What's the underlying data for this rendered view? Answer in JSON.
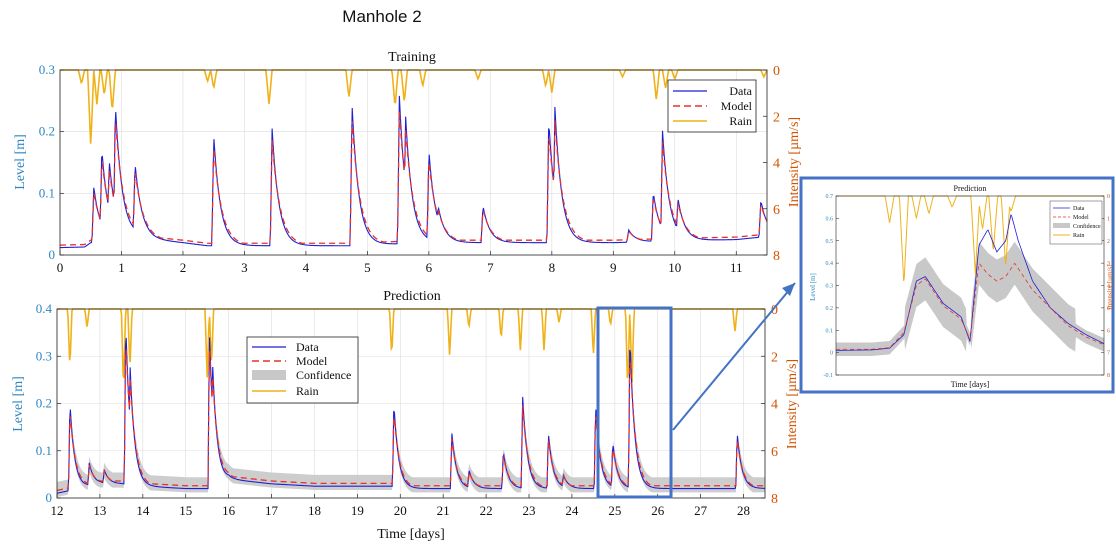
{
  "figure": {
    "title": "Manhole 2",
    "colors": {
      "data": "#1f1fd6",
      "model": "#e8302a",
      "rain": "#f0b21a",
      "confidence": "#c8c8c8",
      "left_axis": "#2e86c1",
      "right_axis": "#d35400",
      "highlight": "#4472c4"
    }
  },
  "chart_data": [
    {
      "id": "training",
      "type": "line",
      "title": "Training",
      "xlabel": "",
      "ylabel": "Level [m]",
      "y2label": "Intensity [µm/s]",
      "xlim": [
        0,
        11.5
      ],
      "ylim": [
        0,
        0.3
      ],
      "y2lim_reversed": [
        0,
        8
      ],
      "xticks": [
        0,
        1,
        2,
        3,
        4,
        5,
        6,
        7,
        8,
        9,
        10,
        11
      ],
      "yticks": [
        0,
        0.1,
        0.2,
        0.3
      ],
      "y2ticks": [
        0,
        2,
        4,
        6,
        8
      ],
      "grid": true,
      "legend": {
        "position": "top-right",
        "entries": [
          "Data",
          "Model",
          "Rain"
        ]
      },
      "baseline": [
        [
          0,
          0.012
        ],
        [
          0.4,
          0.013
        ],
        [
          0.5,
          0.02
        ],
        [
          1.2,
          0.03
        ],
        [
          1.5,
          0.025
        ],
        [
          2.0,
          0.02
        ],
        [
          2.4,
          0.015
        ],
        [
          4.7,
          0.015
        ],
        [
          5.5,
          0.018
        ],
        [
          6.0,
          0.02
        ],
        [
          7.0,
          0.02
        ],
        [
          8.0,
          0.02
        ],
        [
          9.0,
          0.02
        ],
        [
          10.0,
          0.023
        ],
        [
          11.0,
          0.025
        ],
        [
          11.5,
          0.03
        ]
      ],
      "baseline_model_offset": 0.004,
      "peaks": [
        [
          0.55,
          0.11
        ],
        [
          0.68,
          0.17
        ],
        [
          0.8,
          0.15
        ],
        [
          0.9,
          0.24
        ],
        [
          1.22,
          0.14
        ],
        [
          2.5,
          0.2
        ],
        [
          3.45,
          0.21
        ],
        [
          4.75,
          0.25
        ],
        [
          5.52,
          0.26
        ],
        [
          5.62,
          0.23
        ],
        [
          6.0,
          0.17
        ],
        [
          6.15,
          0.08
        ],
        [
          6.88,
          0.08
        ],
        [
          7.95,
          0.22
        ],
        [
          8.05,
          0.24
        ],
        [
          9.25,
          0.04
        ],
        [
          9.65,
          0.1
        ],
        [
          9.8,
          0.2
        ],
        [
          10.05,
          0.09
        ],
        [
          11.4,
          0.08
        ]
      ],
      "rain": [
        [
          0.35,
          0.6
        ],
        [
          0.5,
          3.3
        ],
        [
          0.6,
          1.5
        ],
        [
          0.72,
          1.1
        ],
        [
          0.85,
          1.8
        ],
        [
          2.4,
          0.5
        ],
        [
          2.5,
          0.8
        ],
        [
          3.4,
          1.5
        ],
        [
          4.7,
          1.2
        ],
        [
          5.45,
          1.6
        ],
        [
          5.6,
          1.4
        ],
        [
          5.9,
          0.7
        ],
        [
          6.8,
          0.4
        ],
        [
          7.9,
          0.7
        ],
        [
          8.0,
          1.0
        ],
        [
          9.15,
          0.3
        ],
        [
          9.7,
          1.3
        ],
        [
          9.85,
          0.8
        ],
        [
          10.0,
          0.4
        ],
        [
          11.45,
          0.3
        ]
      ]
    },
    {
      "id": "prediction",
      "type": "line",
      "title": "Prediction",
      "xlabel": "Time [days]",
      "ylabel": "Level [m]",
      "y2label": "Intensity [µm/s]",
      "xlim": [
        12,
        28.5
      ],
      "ylim": [
        0,
        0.4
      ],
      "y2lim_reversed": [
        0,
        8
      ],
      "xticks": [
        12,
        13,
        14,
        15,
        16,
        17,
        18,
        19,
        20,
        21,
        22,
        23,
        24,
        25,
        26,
        27,
        28
      ],
      "yticks": [
        0,
        0.1,
        0.2,
        0.3,
        0.4
      ],
      "y2ticks": [
        0,
        2,
        4,
        6,
        8
      ],
      "grid": true,
      "legend": {
        "position": "upper-center",
        "entries": [
          "Data",
          "Model",
          "Confidence",
          "Rain"
        ]
      },
      "baseline": [
        [
          12,
          0.01
        ],
        [
          12.5,
          0.02
        ],
        [
          13.0,
          0.03
        ],
        [
          13.5,
          0.03
        ],
        [
          14.0,
          0.025
        ],
        [
          15.0,
          0.02
        ],
        [
          15.6,
          0.02
        ],
        [
          16.0,
          0.04
        ],
        [
          17.0,
          0.03
        ],
        [
          18.0,
          0.025
        ],
        [
          19.0,
          0.025
        ],
        [
          19.8,
          0.025
        ],
        [
          20.0,
          0.02
        ],
        [
          21.0,
          0.02
        ],
        [
          22.0,
          0.02
        ],
        [
          23.0,
          0.02
        ],
        [
          24.0,
          0.02
        ],
        [
          25.0,
          0.02
        ],
        [
          26.0,
          0.02
        ],
        [
          27.0,
          0.02
        ],
        [
          28.5,
          0.02
        ]
      ],
      "baseline_model_offset": 0.006,
      "peaks": [
        [
          12.3,
          0.21
        ],
        [
          12.75,
          0.07
        ],
        [
          13.1,
          0.05
        ],
        [
          13.6,
          0.37
        ],
        [
          13.7,
          0.28
        ],
        [
          15.55,
          0.36
        ],
        [
          15.62,
          0.3
        ],
        [
          19.85,
          0.2
        ],
        [
          21.2,
          0.14
        ],
        [
          21.6,
          0.06
        ],
        [
          22.4,
          0.1
        ],
        [
          22.85,
          0.22
        ],
        [
          23.45,
          0.14
        ],
        [
          23.8,
          0.05
        ],
        [
          24.55,
          0.2
        ],
        [
          24.95,
          0.12
        ],
        [
          25.35,
          0.35
        ],
        [
          27.85,
          0.14
        ]
      ],
      "rain": [
        [
          12.3,
          2.5
        ],
        [
          12.7,
          0.8
        ],
        [
          13.55,
          3.5
        ],
        [
          13.7,
          2.5
        ],
        [
          15.5,
          3.0
        ],
        [
          15.6,
          2.5
        ],
        [
          19.8,
          2.0
        ],
        [
          21.15,
          2.0
        ],
        [
          21.6,
          0.8
        ],
        [
          22.35,
          1.3
        ],
        [
          22.8,
          1.8
        ],
        [
          23.35,
          1.8
        ],
        [
          23.7,
          0.6
        ],
        [
          24.5,
          2.0
        ],
        [
          24.9,
          0.7
        ],
        [
          25.3,
          3.5
        ],
        [
          25.4,
          3.2
        ],
        [
          27.8,
          1.0
        ]
      ]
    },
    {
      "id": "inset",
      "type": "line",
      "title": "Prediction",
      "xlabel": "Time [days]",
      "ylabel": "Level [m]",
      "y2label": "Intensity [µm/s]",
      "xlim": [
        24.6,
        26.1
      ],
      "ylim": [
        -0.1,
        0.7
      ],
      "y2lim_reversed": [
        0,
        8
      ],
      "yticks": [
        -0.1,
        0,
        0.1,
        0.2,
        0.3,
        0.4,
        0.5,
        0.6,
        0.7
      ],
      "y2ticks": [
        0,
        1,
        2,
        3,
        4,
        5,
        6,
        7,
        8
      ],
      "grid": false,
      "legend": {
        "position": "top-right",
        "entries": [
          "Data",
          "Model",
          "Confidence",
          "Rain"
        ]
      },
      "data_curve": [
        [
          24.6,
          0.01
        ],
        [
          24.8,
          0.012
        ],
        [
          24.9,
          0.02
        ],
        [
          24.98,
          0.08
        ],
        [
          25.05,
          0.32
        ],
        [
          25.1,
          0.34
        ],
        [
          25.2,
          0.22
        ],
        [
          25.3,
          0.16
        ],
        [
          25.35,
          0.05
        ],
        [
          25.4,
          0.48
        ],
        [
          25.45,
          0.55
        ],
        [
          25.5,
          0.45
        ],
        [
          25.55,
          0.5
        ],
        [
          25.58,
          0.62
        ],
        [
          25.62,
          0.5
        ],
        [
          25.7,
          0.32
        ],
        [
          25.8,
          0.2
        ],
        [
          25.9,
          0.13
        ],
        [
          26.0,
          0.08
        ],
        [
          26.1,
          0.04
        ]
      ],
      "model_curve": [
        [
          24.6,
          0.015
        ],
        [
          24.8,
          0.015
        ],
        [
          24.9,
          0.022
        ],
        [
          24.98,
          0.09
        ],
        [
          25.05,
          0.3
        ],
        [
          25.1,
          0.33
        ],
        [
          25.2,
          0.21
        ],
        [
          25.3,
          0.15
        ],
        [
          25.35,
          0.06
        ],
        [
          25.4,
          0.4
        ],
        [
          25.45,
          0.35
        ],
        [
          25.5,
          0.32
        ],
        [
          25.55,
          0.34
        ],
        [
          25.6,
          0.4
        ],
        [
          25.65,
          0.34
        ],
        [
          25.7,
          0.28
        ],
        [
          25.8,
          0.2
        ],
        [
          25.9,
          0.12
        ],
        [
          26.0,
          0.07
        ],
        [
          26.1,
          0.035
        ]
      ],
      "confidence_width": 0.06,
      "rain": [
        [
          24.9,
          1.2
        ],
        [
          24.98,
          4.0
        ],
        [
          25.05,
          1.0
        ],
        [
          25.12,
          0.8
        ],
        [
          25.25,
          0.5
        ],
        [
          25.38,
          3.5
        ],
        [
          25.42,
          1.5
        ],
        [
          25.48,
          2.5
        ],
        [
          25.55,
          3.2
        ],
        [
          25.58,
          0.7
        ]
      ]
    }
  ]
}
